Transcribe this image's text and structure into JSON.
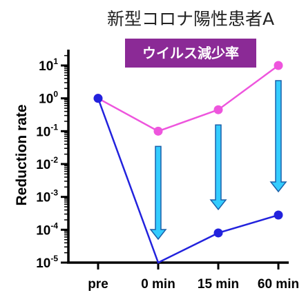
{
  "chart_data": {
    "type": "line",
    "title": "新型コロナ陽性患者A",
    "badge": "ウイルス減少率",
    "ylabel": "Reduction rate",
    "xlabel": "",
    "categories": [
      "pre",
      "0 min",
      "15 min",
      "60 min"
    ],
    "yscale": "log",
    "ylim": [
      1e-05,
      10
    ],
    "yticks": [
      {
        "base": "10",
        "exp": "1",
        "value": 10
      },
      {
        "base": "10",
        "exp": "0",
        "value": 1
      },
      {
        "base": "10",
        "exp": "-1",
        "value": 0.1
      },
      {
        "base": "10",
        "exp": "-2",
        "value": 0.01
      },
      {
        "base": "10",
        "exp": "-3",
        "value": 0.001
      },
      {
        "base": "10",
        "exp": "-4",
        "value": 0.0001
      },
      {
        "base": "10",
        "exp": "-5",
        "value": 1e-05
      }
    ],
    "series": [
      {
        "values": [
          1,
          0.1,
          0.45,
          10
        ],
        "color": "#ee55dd"
      },
      {
        "values": [
          1,
          1e-05,
          8e-05,
          0.00028
        ],
        "color": "#2222dd"
      }
    ],
    "arrow_color": "#33ccff",
    "badge_color": "#8b2a96"
  }
}
